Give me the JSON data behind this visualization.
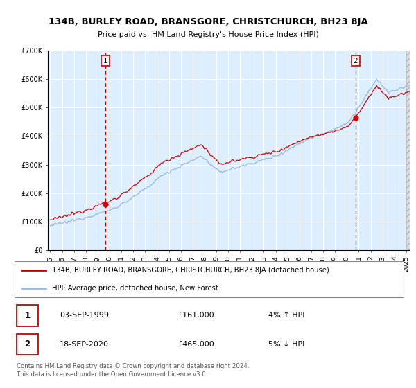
{
  "title": "134B, BURLEY ROAD, BRANSGORE, CHRISTCHURCH, BH23 8JA",
  "subtitle": "Price paid vs. HM Land Registry's House Price Index (HPI)",
  "legend_line1": "134B, BURLEY ROAD, BRANSGORE, CHRISTCHURCH, BH23 8JA (detached house)",
  "legend_line2": "HPI: Average price, detached house, New Forest",
  "transaction1_date": "03-SEP-1999",
  "transaction1_price": "£161,000",
  "transaction1_pct": "4% ↑ HPI",
  "transaction2_date": "18-SEP-2020",
  "transaction2_price": "£465,000",
  "transaction2_pct": "5% ↓ HPI",
  "footer": "Contains HM Land Registry data © Crown copyright and database right 2024.\nThis data is licensed under the Open Government Licence v3.0.",
  "red_color": "#cc0000",
  "blue_color": "#99bbdd",
  "bg_color": "#ddeeff",
  "grid_color": "#ffffff",
  "transaction1_x": 1999.67,
  "transaction2_x": 2020.72,
  "transaction1_y": 161000,
  "transaction2_y": 465000,
  "ylim": [
    0,
    700000
  ],
  "xlim_start": 1994.8,
  "xlim_end": 2025.3,
  "hatch_color": "#cccccc"
}
